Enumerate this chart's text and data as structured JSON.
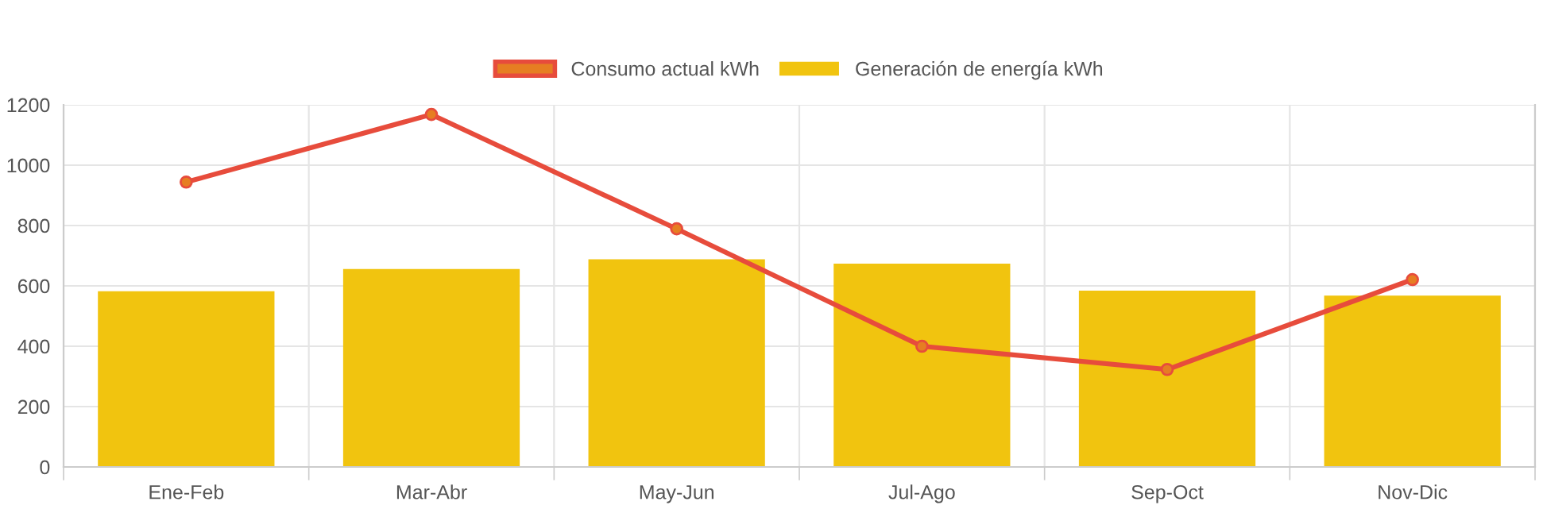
{
  "chart_data": {
    "type": "bar",
    "categories": [
      "Ene-Feb",
      "Mar-Abr",
      "May-Jun",
      "Jul-Ago",
      "Sep-Oct",
      "Nov-Dic"
    ],
    "series": [
      {
        "name": "Consumo actual kWh",
        "type": "line",
        "color": "#e74c3c",
        "marker": "circle",
        "values": [
          944,
          1168,
          789,
          400,
          323,
          621
        ]
      },
      {
        "name": "Generación de energía kWh",
        "color": "#f1c40f",
        "values": [
          582,
          656,
          688,
          674,
          584,
          568
        ]
      }
    ],
    "ylim": [
      0,
      1200
    ],
    "yticks": [
      0,
      200,
      400,
      600,
      800,
      1000,
      1200
    ],
    "grid": true,
    "legend": "top"
  }
}
